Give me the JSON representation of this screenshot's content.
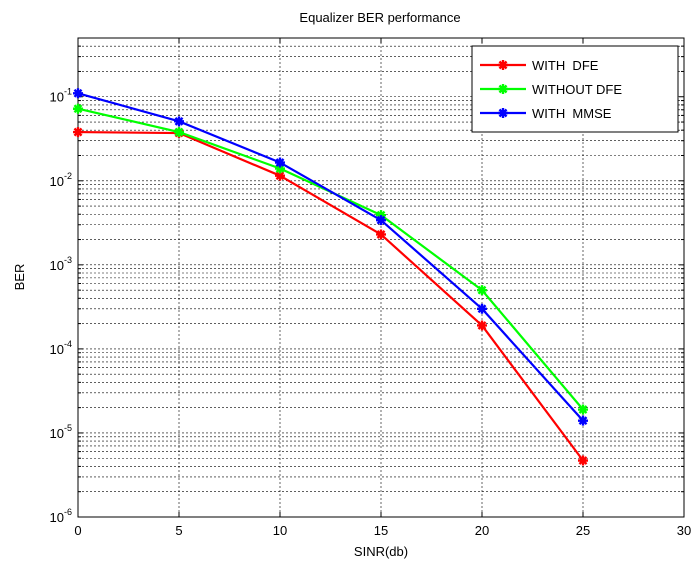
{
  "chart_data": {
    "type": "line",
    "title": "Equalizer BER performance",
    "xlabel": "SINR(db)",
    "ylabel": "BER",
    "xlim": [
      0,
      30
    ],
    "ylim": [
      1e-06,
      0.5
    ],
    "y_scale": "log",
    "grid": true,
    "legend_position": "top-right",
    "x": [
      0,
      5,
      10,
      15,
      20,
      25
    ],
    "x_ticks": [
      "0",
      "5",
      "10",
      "15",
      "20",
      "25",
      "30"
    ],
    "y_ticks": [
      {
        "base": "10",
        "exp": "-1"
      },
      {
        "base": "10",
        "exp": "-2"
      },
      {
        "base": "10",
        "exp": "-3"
      },
      {
        "base": "10",
        "exp": "-4"
      },
      {
        "base": "10",
        "exp": "-5"
      },
      {
        "base": "10",
        "exp": "-6"
      }
    ],
    "series": [
      {
        "name": "WITH  DFE",
        "color": "#ff0000",
        "values": [
          0.038,
          0.037,
          0.0115,
          0.0023,
          0.00019,
          4.7e-06
        ]
      },
      {
        "name": "WITHOUT DFE",
        "color": "#00ff00",
        "values": [
          0.072,
          0.038,
          0.014,
          0.0039,
          0.0005,
          1.9e-05
        ]
      },
      {
        "name": "WITH  MMSE",
        "color": "#0000ff",
        "values": [
          0.11,
          0.051,
          0.0165,
          0.0034,
          0.0003,
          1.4e-05
        ]
      }
    ]
  }
}
